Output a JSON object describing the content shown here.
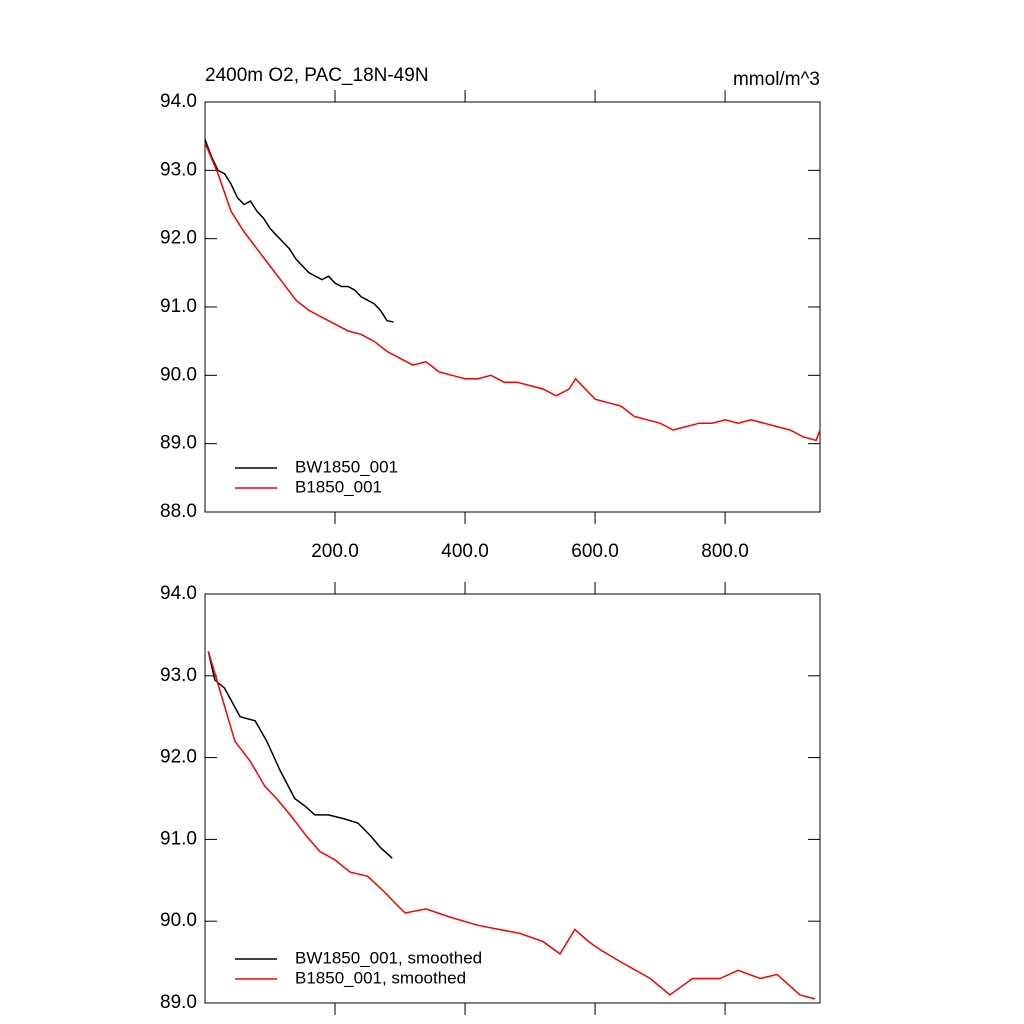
{
  "chart_data": [
    {
      "type": "line",
      "title": "2400m O2, PAC_18N-49N",
      "units_label": "mmol/m^3",
      "xlim": [
        0,
        946
      ],
      "ylim": [
        88,
        94
      ],
      "xticks": [
        {
          "value": 200,
          "label": "200.0"
        },
        {
          "value": 400,
          "label": "400.0"
        },
        {
          "value": 600,
          "label": "600.0"
        },
        {
          "value": 800,
          "label": "800.0"
        }
      ],
      "yticks": [
        {
          "value": 88,
          "label": "88.0"
        },
        {
          "value": 89,
          "label": "89.0"
        },
        {
          "value": 90,
          "label": "90.0"
        },
        {
          "value": 91,
          "label": "91.0"
        },
        {
          "value": 92,
          "label": "92.0"
        },
        {
          "value": 93,
          "label": "93.0"
        },
        {
          "value": 94,
          "label": "94.0"
        }
      ],
      "legend": "lower left",
      "series": [
        {
          "name": "BW1850_001",
          "color": "#000000",
          "x": [
            0,
            10,
            20,
            30,
            40,
            50,
            60,
            70,
            80,
            90,
            100,
            110,
            120,
            130,
            140,
            150,
            160,
            170,
            180,
            190,
            200,
            210,
            220,
            230,
            240,
            250,
            260,
            270,
            280,
            290
          ],
          "values": [
            93.45,
            93.2,
            93.0,
            92.95,
            92.8,
            92.6,
            92.5,
            92.55,
            92.4,
            92.3,
            92.15,
            92.05,
            91.95,
            91.85,
            91.7,
            91.6,
            91.5,
            91.45,
            91.4,
            91.45,
            91.35,
            91.3,
            91.3,
            91.25,
            91.15,
            91.1,
            91.05,
            90.95,
            90.8,
            90.78
          ]
        },
        {
          "name": "B1850_001",
          "color": "#ff0000",
          "x": [
            0,
            20,
            40,
            60,
            80,
            100,
            120,
            140,
            160,
            180,
            200,
            220,
            240,
            260,
            280,
            300,
            320,
            340,
            360,
            380,
            400,
            420,
            440,
            460,
            480,
            500,
            520,
            540,
            560,
            570,
            580,
            600,
            620,
            640,
            660,
            680,
            700,
            720,
            740,
            760,
            780,
            800,
            820,
            840,
            860,
            880,
            900,
            920,
            940,
            946
          ],
          "values": [
            93.4,
            92.95,
            92.4,
            92.1,
            91.85,
            91.6,
            91.35,
            91.1,
            90.95,
            90.85,
            90.75,
            90.65,
            90.6,
            90.5,
            90.35,
            90.25,
            90.15,
            90.2,
            90.05,
            90.0,
            89.95,
            89.95,
            90.0,
            89.9,
            89.9,
            89.85,
            89.8,
            89.7,
            89.8,
            89.95,
            89.85,
            89.65,
            89.6,
            89.55,
            89.4,
            89.35,
            89.3,
            89.2,
            89.25,
            89.3,
            89.3,
            89.35,
            89.3,
            89.35,
            89.3,
            89.25,
            89.2,
            89.1,
            89.05,
            89.2
          ]
        }
      ]
    },
    {
      "type": "line",
      "xlim": [
        0,
        946
      ],
      "ylim": [
        89,
        94
      ],
      "xticks": [
        200,
        400,
        600,
        800
      ],
      "yticks": [
        {
          "value": 89,
          "label": "89.0"
        },
        {
          "value": 90,
          "label": "90.0"
        },
        {
          "value": 91,
          "label": "91.0"
        },
        {
          "value": 92,
          "label": "92.0"
        },
        {
          "value": 93,
          "label": "93.0"
        },
        {
          "value": 94,
          "label": "94.0"
        }
      ],
      "legend": "lower left",
      "series": [
        {
          "name": "BW1850_001, smoothed",
          "color": "#000000",
          "x": [
            5,
            15,
            30,
            54,
            77,
            95,
            115,
            138,
            155,
            169,
            190,
            215,
            235,
            254,
            270,
            288
          ],
          "values": [
            93.3,
            92.95,
            92.85,
            92.5,
            92.45,
            92.2,
            91.85,
            91.5,
            91.4,
            91.3,
            91.3,
            91.25,
            91.2,
            91.05,
            90.9,
            90.77
          ]
        },
        {
          "name": "B1850_001, smoothed",
          "color": "#ff0000",
          "x": [
            5,
            20,
            46,
            70,
            92,
            110,
            131,
            155,
            177,
            200,
            223,
            250,
            277,
            295,
            308,
            340,
            377,
            420,
            485,
            520,
            546,
            569,
            590,
            608,
            640,
            685,
            715,
            750,
            792,
            820,
            854,
            880,
            915,
            938
          ],
          "values": [
            93.3,
            92.9,
            92.2,
            91.95,
            91.65,
            91.5,
            91.3,
            91.05,
            90.85,
            90.75,
            90.6,
            90.55,
            90.35,
            90.2,
            90.1,
            90.15,
            90.05,
            89.95,
            89.85,
            89.75,
            89.6,
            89.9,
            89.75,
            89.65,
            89.5,
            89.3,
            89.1,
            89.3,
            89.3,
            89.4,
            89.3,
            89.35,
            89.1,
            89.05
          ]
        }
      ]
    }
  ]
}
